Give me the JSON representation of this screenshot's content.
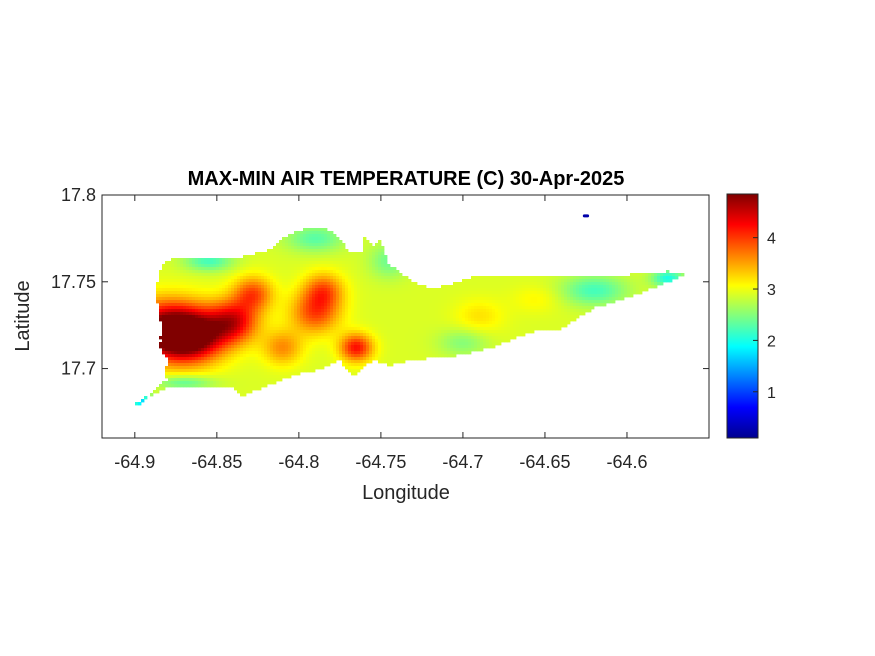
{
  "chart_data": {
    "type": "heatmap",
    "title": "MAX-MIN AIR TEMPERATURE (C) 30-Apr-2025",
    "xlabel": "Longitude",
    "ylabel": "Latitude",
    "xlim": [
      -64.92,
      -64.55
    ],
    "ylim": [
      17.66,
      17.8
    ],
    "x_ticks": [
      -64.9,
      -64.85,
      -64.8,
      -64.75,
      -64.7,
      -64.65,
      -64.6
    ],
    "x_tick_labels": [
      "-64.9",
      "-64.85",
      "-64.8",
      "-64.75",
      "-64.7",
      "-64.65",
      "-64.6"
    ],
    "y_ticks": [
      17.7,
      17.75,
      17.8
    ],
    "y_tick_labels": [
      "17.7",
      "17.75",
      "17.8"
    ],
    "colorbar": {
      "colormap": "jet",
      "range": [
        0.1,
        4.85
      ],
      "ticks": [
        1,
        2,
        3,
        4
      ],
      "tick_labels": [
        "1",
        "2",
        "3",
        "4"
      ]
    },
    "grid": false,
    "island_outline": [
      [
        -64.877,
        17.69
      ],
      [
        -64.84,
        17.69
      ],
      [
        -64.835,
        17.684
      ],
      [
        -64.82,
        17.69
      ],
      [
        -64.8,
        17.697
      ],
      [
        -64.785,
        17.7
      ],
      [
        -64.775,
        17.705
      ],
      [
        -64.77,
        17.698
      ],
      [
        -64.765,
        17.696
      ],
      [
        -64.762,
        17.7
      ],
      [
        -64.755,
        17.705
      ],
      [
        -64.745,
        17.702
      ],
      [
        -64.73,
        17.705
      ],
      [
        -64.7,
        17.708
      ],
      [
        -64.68,
        17.713
      ],
      [
        -64.67,
        17.717
      ],
      [
        -64.655,
        17.722
      ],
      [
        -64.64,
        17.723
      ],
      [
        -64.62,
        17.735
      ],
      [
        -64.6,
        17.741
      ],
      [
        -64.585,
        17.746
      ],
      [
        -64.572,
        17.751
      ],
      [
        -64.565,
        17.754
      ],
      [
        -64.575,
        17.756
      ],
      [
        -64.6,
        17.754
      ],
      [
        -64.64,
        17.754
      ],
      [
        -64.69,
        17.754
      ],
      [
        -64.71,
        17.748
      ],
      [
        -64.72,
        17.746
      ],
      [
        -64.73,
        17.75
      ],
      [
        -64.745,
        17.76
      ],
      [
        -64.75,
        17.774
      ],
      [
        -64.755,
        17.771
      ],
      [
        -64.76,
        17.776
      ],
      [
        -64.76,
        17.767
      ],
      [
        -64.77,
        17.768
      ],
      [
        -64.778,
        17.778
      ],
      [
        -64.785,
        17.781
      ],
      [
        -64.8,
        17.78
      ],
      [
        -64.81,
        17.775
      ],
      [
        -64.82,
        17.767
      ],
      [
        -64.83,
        17.766
      ],
      [
        -64.84,
        17.763
      ],
      [
        -64.855,
        17.764
      ],
      [
        -64.872,
        17.764
      ],
      [
        -64.882,
        17.762
      ],
      [
        -64.885,
        17.755
      ],
      [
        -64.888,
        17.742
      ],
      [
        -64.885,
        17.735
      ],
      [
        -64.884,
        17.723
      ],
      [
        -64.885,
        17.712
      ],
      [
        -64.88,
        17.705
      ],
      [
        -64.882,
        17.696
      ]
    ],
    "southwest_spit": [
      [
        -64.88,
        17.694
      ],
      [
        -64.893,
        17.684
      ],
      [
        -64.901,
        17.679
      ],
      [
        -64.898,
        17.679
      ],
      [
        -64.888,
        17.686
      ],
      [
        -64.877,
        17.69
      ]
    ],
    "islet": [
      [
        -64.624,
        17.788
      ],
      [
        -64.626,
        17.788
      ]
    ],
    "islet_value": 0.3,
    "base_value": 2.9,
    "field_anomalies": [
      {
        "lon": -64.88,
        "lat": 17.722,
        "amp": 2.1,
        "radius_lon": 0.025,
        "radius_lat": 0.016
      },
      {
        "lon": -64.865,
        "lat": 17.718,
        "amp": 1.5,
        "radius_lon": 0.02,
        "radius_lat": 0.014
      },
      {
        "lon": -64.84,
        "lat": 17.727,
        "amp": 1.4,
        "radius_lon": 0.015,
        "radius_lat": 0.012
      },
      {
        "lon": -64.828,
        "lat": 17.743,
        "amp": 1.0,
        "radius_lon": 0.012,
        "radius_lat": 0.01
      },
      {
        "lon": -64.79,
        "lat": 17.732,
        "amp": 1.0,
        "radius_lon": 0.015,
        "radius_lat": 0.012
      },
      {
        "lon": -64.785,
        "lat": 17.745,
        "amp": 0.9,
        "radius_lon": 0.012,
        "radius_lat": 0.01
      },
      {
        "lon": -64.765,
        "lat": 17.712,
        "amp": 1.3,
        "radius_lon": 0.01,
        "radius_lat": 0.008
      },
      {
        "lon": -64.81,
        "lat": 17.712,
        "amp": 0.7,
        "radius_lon": 0.012,
        "radius_lat": 0.01
      },
      {
        "lon": -64.855,
        "lat": 17.762,
        "amp": -0.7,
        "radius_lon": 0.015,
        "radius_lat": 0.006
      },
      {
        "lon": -64.79,
        "lat": 17.775,
        "amp": -0.6,
        "radius_lon": 0.018,
        "radius_lat": 0.008
      },
      {
        "lon": -64.745,
        "lat": 17.762,
        "amp": -0.5,
        "radius_lon": 0.012,
        "radius_lat": 0.01
      },
      {
        "lon": -64.62,
        "lat": 17.745,
        "amp": -0.7,
        "radius_lon": 0.02,
        "radius_lat": 0.009
      },
      {
        "lon": -64.575,
        "lat": 17.752,
        "amp": -0.9,
        "radius_lon": 0.01,
        "radius_lat": 0.005
      },
      {
        "lon": -64.87,
        "lat": 17.692,
        "amp": -0.6,
        "radius_lon": 0.018,
        "radius_lat": 0.004
      },
      {
        "lon": -64.895,
        "lat": 17.681,
        "amp": -1.2,
        "radius_lon": 0.008,
        "radius_lat": 0.004
      },
      {
        "lon": -64.7,
        "lat": 17.715,
        "amp": -0.4,
        "radius_lon": 0.015,
        "radius_lat": 0.008
      },
      {
        "lon": -64.69,
        "lat": 17.73,
        "amp": 0.3,
        "radius_lon": 0.015,
        "radius_lat": 0.01
      },
      {
        "lon": -64.655,
        "lat": 17.74,
        "amp": 0.2,
        "radius_lon": 0.015,
        "radius_lat": 0.008
      }
    ],
    "white_holes": [
      {
        "lon": -64.887,
        "lat": 17.716,
        "radius_lon": 0.003,
        "radius_lat": 0.002
      }
    ]
  }
}
